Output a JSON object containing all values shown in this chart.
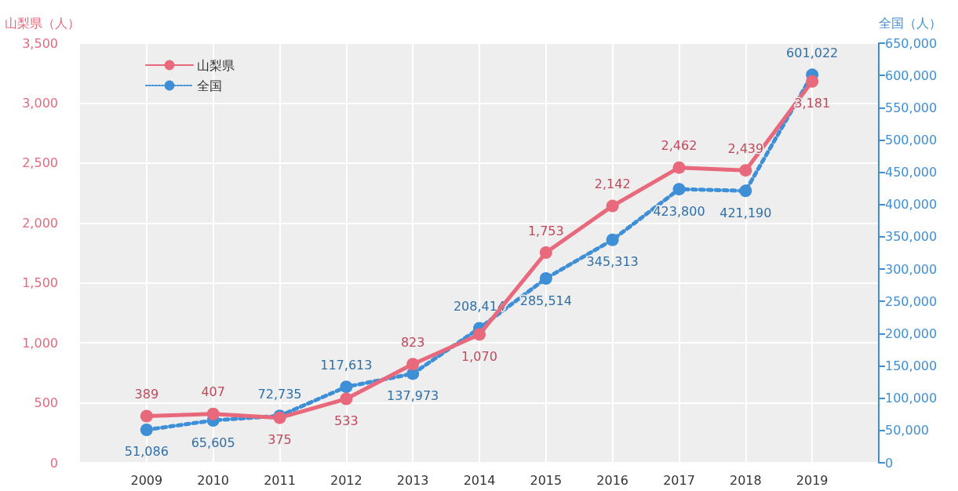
{
  "chart_data": {
    "type": "line",
    "ylabel": "山梨県（人）",
    "y2label": "全国（人）",
    "x": [
      2009,
      2010,
      2011,
      2012,
      2013,
      2014,
      2015,
      2016,
      2017,
      2018,
      2019
    ],
    "xlim": [
      2008,
      2020
    ],
    "xticks": [
      2009,
      2010,
      2011,
      2012,
      2013,
      2014,
      2015,
      2016,
      2017,
      2018,
      2019
    ],
    "ylim": [
      0,
      3500
    ],
    "yticks": [
      0,
      500,
      {
        "value": 1000,
        "label": "1,000"
      },
      {
        "value": 1500,
        "label": "1,500"
      },
      {
        "value": 2000,
        "label": "2,000"
      },
      {
        "value": 2500,
        "label": "2,500"
      },
      {
        "value": 3000,
        "label": "3,000"
      },
      {
        "value": 3500,
        "label": "3,500"
      }
    ],
    "y2lim": [
      0,
      650000
    ],
    "y2ticks": [
      0,
      {
        "value": 50000,
        "label": "50,000"
      },
      {
        "value": 100000,
        "label": "100,000"
      },
      {
        "value": 150000,
        "label": "150,000"
      },
      {
        "value": 200000,
        "label": "200,000"
      },
      {
        "value": 250000,
        "label": "250,000"
      },
      {
        "value": 300000,
        "label": "300,000"
      },
      {
        "value": 350000,
        "label": "350,000"
      },
      {
        "value": 400000,
        "label": "400,000"
      },
      {
        "value": 450000,
        "label": "450,000"
      },
      {
        "value": 500000,
        "label": "500,000"
      },
      {
        "value": 550000,
        "label": "550,000"
      },
      {
        "value": 600000,
        "label": "600,000"
      },
      {
        "value": 650000,
        "label": "650,000"
      }
    ],
    "series": [
      {
        "name": "山梨県",
        "color": "#e8697c",
        "line_style": "solid",
        "values": [
          389,
          407,
          375,
          533,
          823,
          1070,
          1753,
          2142,
          2462,
          2439,
          3181
        ],
        "value_labels": [
          "389",
          "407",
          "375",
          "533",
          "823",
          "1,070",
          "1,753",
          "2,142",
          "2,462",
          "2,439",
          "3,181"
        ]
      },
      {
        "name": "全国",
        "color": "#3f8fd6",
        "line_style": "dotted",
        "axis": "y2",
        "values": [
          51086,
          65605,
          72735,
          117613,
          137973,
          208414,
          285514,
          345313,
          423800,
          421190,
          601022
        ],
        "value_labels": [
          "51,086",
          "65,605",
          "72,735",
          "117,613",
          "137,973",
          "208,414",
          "285,514",
          "345,313",
          "423,800",
          "421,190",
          "601,022"
        ]
      }
    ],
    "grid": true,
    "legend": "top left",
    "marker": "circle"
  }
}
